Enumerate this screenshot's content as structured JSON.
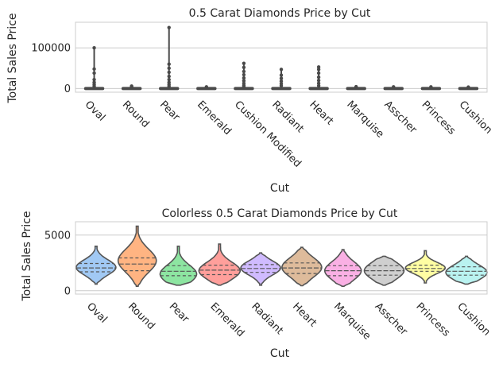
{
  "chart_data": [
    {
      "type": "violin",
      "title": "0.5 Carat Diamonds Price by Cut",
      "xlabel": "Cut",
      "ylabel": "Total Sales Price",
      "categories": [
        "Oval",
        "Round",
        "Pear",
        "Emerald",
        "Cushion Modified",
        "Radiant",
        "Heart",
        "Marquise",
        "Asscher",
        "Princess",
        "Cushion"
      ],
      "ylim": [
        -9000,
        163000
      ],
      "yticks": [
        0,
        100000
      ],
      "ytick_labels": [
        "0",
        "100000"
      ],
      "max_values": [
        100000,
        6000,
        150000,
        4000,
        62000,
        47000,
        53000,
        4500,
        4000,
        4000,
        3500
      ],
      "outliers": [
        [
          100000,
          48000,
          38000,
          22000,
          15000,
          10000,
          6000
        ],
        [
          6000,
          4500
        ],
        [
          150000,
          60000,
          50000,
          40000,
          30000,
          22000,
          15000,
          10000,
          6000
        ],
        [
          4000
        ],
        [
          62000,
          52000,
          42000,
          34000,
          26000,
          19000,
          13000,
          8000,
          4500
        ],
        [
          47000,
          33000,
          25000,
          18000,
          12000,
          7000
        ],
        [
          53000,
          47000,
          38000,
          28000,
          20000,
          13000,
          7000
        ],
        [
          4500
        ],
        [
          4000
        ],
        [
          4000
        ],
        [
          3500
        ]
      ],
      "grid": true,
      "color": "#4a4a4a"
    },
    {
      "type": "violin",
      "title": "Colorless 0.5 Carat Diamonds Price by Cut",
      "xlabel": "Cut",
      "ylabel": "Total Sales Price",
      "categories": [
        "Oval",
        "Round",
        "Pear",
        "Emerald",
        "Radiant",
        "Heart",
        "Marquise",
        "Asscher",
        "Princess",
        "Cushion"
      ],
      "colors": [
        "#a1c9f4",
        "#ffb482",
        "#8de5a1",
        "#ff9f9b",
        "#d0bbff",
        "#debb9b",
        "#fab0e4",
        "#cfcfcf",
        "#fffea3",
        "#b9f2f0"
      ],
      "ylim": [
        -300,
        6200
      ],
      "yticks": [
        0,
        5000
      ],
      "ytick_labels": [
        "0",
        "5000"
      ],
      "grid": true,
      "violins": [
        {
          "min": 600,
          "max": 4000,
          "q1": 1700,
          "median": 2050,
          "q3": 2450,
          "mode": 2100,
          "halfwidth": 25
        },
        {
          "min": 400,
          "max": 5800,
          "q1": 1800,
          "median": 2400,
          "q3": 2950,
          "mode": 2700,
          "halfwidth": 24
        },
        {
          "min": 500,
          "max": 4000,
          "q1": 1350,
          "median": 1750,
          "q3": 2250,
          "mode": 1500,
          "halfwidth": 23
        },
        {
          "min": 500,
          "max": 4200,
          "q1": 1450,
          "median": 1850,
          "q3": 2300,
          "mode": 1800,
          "halfwidth": 26
        },
        {
          "min": 500,
          "max": 3400,
          "q1": 1650,
          "median": 2000,
          "q3": 2350,
          "mode": 2050,
          "halfwidth": 25
        },
        {
          "min": 450,
          "max": 3900,
          "q1": 1550,
          "median": 2050,
          "q3": 2500,
          "mode": 2100,
          "halfwidth": 25
        },
        {
          "min": 400,
          "max": 3700,
          "q1": 1350,
          "median": 1800,
          "q3": 2250,
          "mode": 1800,
          "halfwidth": 23
        },
        {
          "min": 500,
          "max": 3100,
          "q1": 1400,
          "median": 1800,
          "q3": 2250,
          "mode": 1800,
          "halfwidth": 25
        },
        {
          "min": 700,
          "max": 3600,
          "q1": 1750,
          "median": 2000,
          "q3": 2300,
          "mode": 2050,
          "halfwidth": 25
        },
        {
          "min": 600,
          "max": 3100,
          "q1": 1400,
          "median": 1750,
          "q3": 2150,
          "mode": 1650,
          "halfwidth": 26
        }
      ]
    }
  ]
}
